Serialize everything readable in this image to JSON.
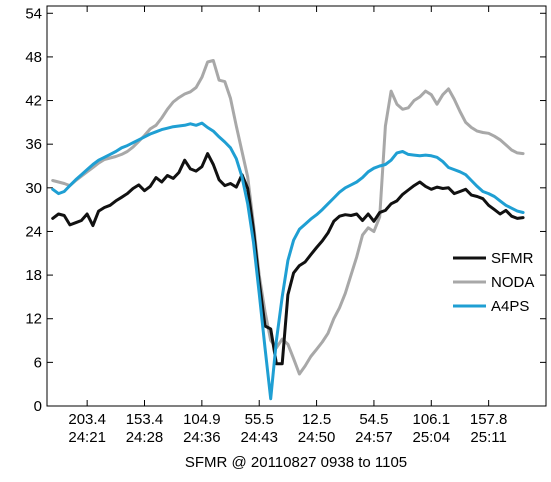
{
  "chart_data": {
    "type": "line",
    "xlabel": "SFMR @ 20110827 0938 to 1105",
    "ylabel": "",
    "ylim": [
      0,
      55
    ],
    "yticks": [
      0,
      6,
      12,
      18,
      24,
      30,
      36,
      42,
      48,
      54
    ],
    "xlim": [
      0,
      87
    ],
    "xticks": [
      {
        "x": 7,
        "line1": "203.4",
        "line2": "24:21"
      },
      {
        "x": 17,
        "line1": "153.4",
        "line2": "24:28"
      },
      {
        "x": 27,
        "line1": "104.9",
        "line2": "24:36"
      },
      {
        "x": 37,
        "line1": "55.5",
        "line2": "24:43"
      },
      {
        "x": 47,
        "line1": "12.5",
        "line2": "24:50"
      },
      {
        "x": 57,
        "line1": "54.5",
        "line2": "24:57"
      },
      {
        "x": 67,
        "line1": "106.1",
        "line2": "25:04"
      },
      {
        "x": 77,
        "line1": "157.8",
        "line2": "25:11"
      }
    ],
    "legend_position": "right",
    "series": [
      {
        "name": "SFMR",
        "color": "#111111",
        "x": [
          1,
          2,
          3,
          4,
          5,
          6,
          7,
          8,
          9,
          10,
          11,
          12,
          13,
          14,
          15,
          16,
          17,
          18,
          19,
          20,
          21,
          22,
          23,
          24,
          25,
          26,
          27,
          28,
          29,
          30,
          31,
          32,
          33,
          34,
          35,
          36,
          37,
          38,
          39,
          40,
          41,
          42,
          43,
          44,
          45,
          46,
          47,
          48,
          49,
          50,
          51,
          52,
          53,
          54,
          55,
          56,
          57,
          58,
          59,
          60,
          61,
          62,
          63,
          64,
          65,
          66,
          67,
          68,
          69,
          70,
          71,
          72,
          73,
          74,
          75,
          76,
          77,
          78,
          79,
          80,
          81,
          82,
          83
        ],
        "y": [
          25.8,
          26.4,
          26.2,
          24.9,
          25.2,
          25.5,
          26.4,
          24.8,
          26.8,
          27.3,
          27.6,
          28.2,
          28.7,
          29.2,
          29.9,
          30.4,
          29.6,
          30.2,
          31.4,
          30.8,
          31.7,
          31.3,
          32.1,
          33.8,
          32.6,
          32.3,
          32.9,
          34.7,
          33.2,
          31.1,
          30.3,
          30.6,
          30.1,
          31.8,
          29.9,
          24.2,
          17.1,
          11.0,
          10.6,
          5.8,
          5.8,
          15.3,
          18.3,
          19.3,
          19.8,
          20.8,
          21.8,
          22.7,
          23.8,
          25.4,
          26.1,
          26.3,
          26.2,
          26.4,
          25.5,
          26.4,
          25.4,
          26.6,
          26.9,
          27.8,
          28.2,
          29.1,
          29.7,
          30.3,
          30.8,
          30.2,
          29.8,
          30.1,
          29.9,
          30.0,
          29.2,
          29.5,
          29.8,
          29.0,
          28.8,
          28.5,
          27.6,
          27.0,
          26.4,
          26.9,
          26.1,
          25.8,
          25.9
        ]
      },
      {
        "name": "NODA",
        "color": "#a8a8a8",
        "x": [
          1,
          2,
          3,
          4,
          5,
          6,
          7,
          8,
          9,
          10,
          11,
          12,
          13,
          14,
          15,
          16,
          17,
          18,
          19,
          20,
          21,
          22,
          23,
          24,
          25,
          26,
          27,
          28,
          29,
          30,
          31,
          32,
          33,
          34,
          35,
          36,
          37,
          38,
          39,
          40,
          41,
          42,
          43,
          44,
          45,
          46,
          47,
          48,
          49,
          50,
          51,
          52,
          53,
          54,
          55,
          56,
          57,
          58,
          59,
          60,
          61,
          62,
          63,
          64,
          65,
          66,
          67,
          68,
          69,
          70,
          71,
          72,
          73,
          74,
          75,
          76,
          77,
          78,
          79,
          80,
          81,
          82,
          83
        ],
        "y": [
          31.0,
          30.8,
          30.6,
          30.3,
          31.0,
          31.6,
          32.2,
          32.8,
          33.4,
          33.9,
          34.1,
          34.3,
          34.6,
          35.0,
          35.6,
          36.4,
          37.2,
          38.1,
          38.6,
          39.6,
          40.8,
          41.8,
          42.4,
          42.9,
          43.2,
          43.8,
          45.2,
          47.3,
          47.5,
          44.8,
          44.6,
          42.3,
          38.5,
          35.0,
          31.5,
          25.0,
          18.0,
          13.0,
          9.0,
          8.0,
          9.2,
          8.5,
          6.5,
          4.4,
          5.5,
          6.8,
          7.8,
          8.8,
          10.0,
          12.0,
          13.5,
          15.5,
          18.0,
          20.5,
          23.5,
          24.5,
          24.0,
          26.0,
          38.5,
          43.3,
          41.5,
          40.8,
          41.0,
          42.0,
          42.5,
          43.3,
          42.8,
          41.5,
          42.8,
          43.6,
          42.2,
          40.5,
          39.0,
          38.3,
          37.8,
          37.6,
          37.5,
          37.1,
          36.6,
          35.9,
          35.2,
          34.8,
          34.7
        ]
      },
      {
        "name": "A4PS",
        "color": "#1f9fd3",
        "x": [
          1,
          2,
          3,
          4,
          5,
          6,
          7,
          8,
          9,
          10,
          11,
          12,
          13,
          14,
          15,
          16,
          17,
          18,
          19,
          20,
          21,
          22,
          23,
          24,
          25,
          26,
          27,
          28,
          29,
          30,
          31,
          32,
          33,
          34,
          35,
          36,
          37,
          38,
          39,
          40,
          41,
          42,
          43,
          44,
          45,
          46,
          47,
          48,
          49,
          50,
          51,
          52,
          53,
          54,
          55,
          56,
          57,
          58,
          59,
          60,
          61,
          62,
          63,
          64,
          65,
          66,
          67,
          68,
          69,
          70,
          71,
          72,
          73,
          74,
          75,
          76,
          77,
          78,
          79,
          80,
          81,
          82,
          83
        ],
        "y": [
          29.8,
          29.2,
          29.5,
          30.3,
          31.1,
          31.8,
          32.5,
          33.2,
          33.8,
          34.2,
          34.6,
          35.0,
          35.5,
          35.8,
          36.2,
          36.6,
          37.0,
          37.4,
          37.7,
          38.0,
          38.2,
          38.4,
          38.5,
          38.6,
          38.8,
          38.6,
          38.9,
          38.3,
          37.8,
          37.0,
          36.3,
          35.5,
          34.0,
          31.5,
          27.8,
          22.5,
          15.5,
          8.0,
          1.0,
          9.0,
          15.0,
          20.0,
          22.8,
          24.3,
          25.0,
          25.7,
          26.3,
          27.0,
          27.8,
          28.6,
          29.4,
          30.0,
          30.4,
          30.8,
          31.4,
          32.2,
          32.7,
          33.0,
          33.2,
          33.8,
          34.8,
          35.0,
          34.6,
          34.5,
          34.4,
          34.5,
          34.4,
          34.2,
          33.6,
          32.8,
          32.5,
          32.2,
          31.8,
          31.0,
          30.2,
          29.5,
          29.2,
          28.8,
          28.2,
          27.6,
          27.2,
          26.8,
          26.6
        ]
      }
    ]
  }
}
